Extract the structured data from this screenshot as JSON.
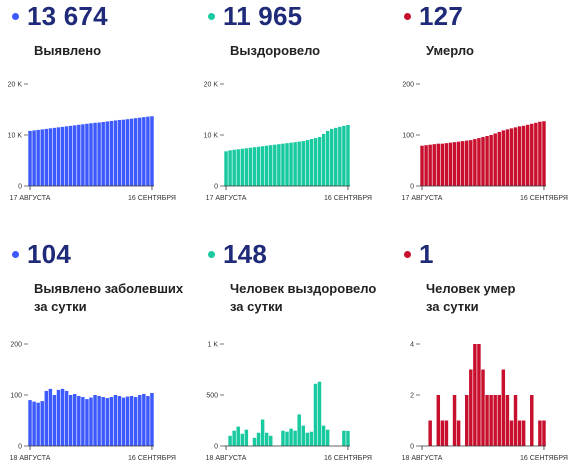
{
  "panels": [
    {
      "value": "13 674",
      "label_lines": [
        "Выявлено"
      ],
      "color": "#3d5afe",
      "chart_data": {
        "type": "bar",
        "ylim": [
          0,
          20000
        ],
        "yticks": [
          "0",
          "10 K",
          "20 K"
        ],
        "xticks": [
          "17 АВГУСТА",
          "16 СЕНТЯБРЯ"
        ],
        "values": [
          10800,
          10900,
          11000,
          11100,
          11200,
          11300,
          11400,
          11500,
          11600,
          11700,
          11800,
          11900,
          12000,
          12100,
          12200,
          12300,
          12400,
          12450,
          12550,
          12650,
          12750,
          12850,
          12950,
          13000,
          13100,
          13200,
          13300,
          13400,
          13500,
          13600,
          13674
        ]
      }
    },
    {
      "value": "11 965",
      "label_lines": [
        "Выздоровело"
      ],
      "color": "#19c9a0",
      "chart_data": {
        "type": "bar",
        "ylim": [
          0,
          20000
        ],
        "yticks": [
          "0",
          "10 K",
          "20 K"
        ],
        "xticks": [
          "17 АВГУСТА",
          "16 СЕНТЯБРЯ"
        ],
        "values": [
          6800,
          7000,
          7100,
          7200,
          7300,
          7400,
          7500,
          7600,
          7700,
          7800,
          7900,
          8000,
          8100,
          8200,
          8300,
          8400,
          8500,
          8600,
          8700,
          8800,
          9000,
          9200,
          9400,
          9600,
          10200,
          10800,
          11200,
          11400,
          11600,
          11800,
          11965
        ]
      }
    },
    {
      "value": "127",
      "label_lines": [
        "Умерло"
      ],
      "color": "#c8102e",
      "chart_data": {
        "type": "bar",
        "ylim": [
          0,
          200
        ],
        "yticks": [
          "0",
          "100",
          "200"
        ],
        "xticks": [
          "17 АВГУСТА",
          "16 СЕНТЯБРЯ"
        ],
        "values": [
          79,
          80,
          81,
          82,
          83,
          83,
          84,
          85,
          86,
          87,
          88,
          89,
          90,
          92,
          94,
          96,
          98,
          100,
          103,
          106,
          109,
          111,
          113,
          115,
          117,
          118,
          120,
          122,
          124,
          126,
          127
        ]
      }
    },
    {
      "value": "104",
      "label_lines": [
        "Выявлено заболевших",
        "за сутки"
      ],
      "color": "#3d5afe",
      "chart_data": {
        "type": "bar",
        "ylim": [
          0,
          200
        ],
        "yticks": [
          "0",
          "100",
          "200"
        ],
        "xticks": [
          "18 АВГУСТА",
          "16 СЕНТЯБРЯ"
        ],
        "values": [
          90,
          87,
          85,
          88,
          108,
          112,
          100,
          110,
          112,
          108,
          100,
          102,
          98,
          96,
          92,
          95,
          100,
          98,
          96,
          94,
          96,
          100,
          98,
          95,
          97,
          98,
          96,
          100,
          102,
          98,
          104
        ]
      }
    },
    {
      "value": "148",
      "label_lines": [
        "Человек выздоровело",
        "за сутки"
      ],
      "color": "#19c9a0",
      "chart_data": {
        "type": "bar",
        "ylim": [
          0,
          1000
        ],
        "yticks": [
          "0",
          "500",
          "1 K"
        ],
        "xticks": [
          "18 АВГУСТА",
          "16 СЕНТЯБРЯ"
        ],
        "values": [
          0,
          100,
          150,
          190,
          120,
          160,
          0,
          80,
          130,
          260,
          130,
          100,
          0,
          0,
          150,
          140,
          170,
          150,
          310,
          200,
          130,
          140,
          610,
          630,
          200,
          160,
          0,
          0,
          0,
          150,
          148
        ]
      }
    },
    {
      "value": "1",
      "label_lines": [
        "Человек умер",
        "за сутки"
      ],
      "color": "#c8102e",
      "chart_data": {
        "type": "bar",
        "ylim": [
          0,
          4
        ],
        "yticks": [
          "0",
          "2",
          "4"
        ],
        "xticks": [
          "18 АВГУСТА",
          "16 СЕНТЯБРЯ"
        ],
        "values": [
          0,
          0,
          1,
          0,
          2,
          1,
          1,
          0,
          2,
          1,
          0,
          2,
          3,
          4,
          4,
          3,
          2,
          2,
          2,
          2,
          3,
          2,
          1,
          2,
          1,
          1,
          0,
          2,
          0,
          1,
          1
        ]
      }
    }
  ]
}
